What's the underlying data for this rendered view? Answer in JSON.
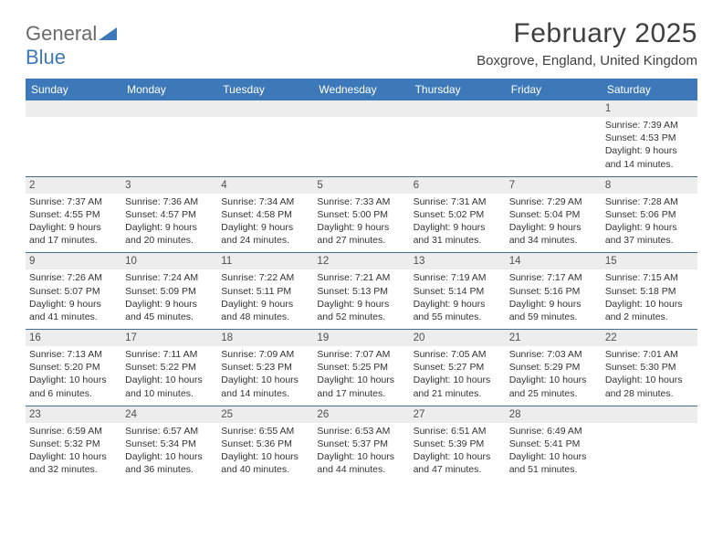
{
  "logo": {
    "text1": "General",
    "text2": "Blue"
  },
  "title": "February 2025",
  "location": "Boxgrove, England, United Kingdom",
  "colors": {
    "header_bg": "#3d79b8",
    "header_text": "#ffffff",
    "strip_bg": "#ededed",
    "divider": "#4a6a8a",
    "text": "#333333",
    "title_color": "#3f3f3f"
  },
  "dayHeaders": [
    "Sunday",
    "Monday",
    "Tuesday",
    "Wednesday",
    "Thursday",
    "Friday",
    "Saturday"
  ],
  "weeks": [
    [
      null,
      null,
      null,
      null,
      null,
      null,
      {
        "n": "1",
        "sr": "Sunrise: 7:39 AM",
        "ss": "Sunset: 4:53 PM",
        "d1": "Daylight: 9 hours",
        "d2": "and 14 minutes."
      }
    ],
    [
      {
        "n": "2",
        "sr": "Sunrise: 7:37 AM",
        "ss": "Sunset: 4:55 PM",
        "d1": "Daylight: 9 hours",
        "d2": "and 17 minutes."
      },
      {
        "n": "3",
        "sr": "Sunrise: 7:36 AM",
        "ss": "Sunset: 4:57 PM",
        "d1": "Daylight: 9 hours",
        "d2": "and 20 minutes."
      },
      {
        "n": "4",
        "sr": "Sunrise: 7:34 AM",
        "ss": "Sunset: 4:58 PM",
        "d1": "Daylight: 9 hours",
        "d2": "and 24 minutes."
      },
      {
        "n": "5",
        "sr": "Sunrise: 7:33 AM",
        "ss": "Sunset: 5:00 PM",
        "d1": "Daylight: 9 hours",
        "d2": "and 27 minutes."
      },
      {
        "n": "6",
        "sr": "Sunrise: 7:31 AM",
        "ss": "Sunset: 5:02 PM",
        "d1": "Daylight: 9 hours",
        "d2": "and 31 minutes."
      },
      {
        "n": "7",
        "sr": "Sunrise: 7:29 AM",
        "ss": "Sunset: 5:04 PM",
        "d1": "Daylight: 9 hours",
        "d2": "and 34 minutes."
      },
      {
        "n": "8",
        "sr": "Sunrise: 7:28 AM",
        "ss": "Sunset: 5:06 PM",
        "d1": "Daylight: 9 hours",
        "d2": "and 37 minutes."
      }
    ],
    [
      {
        "n": "9",
        "sr": "Sunrise: 7:26 AM",
        "ss": "Sunset: 5:07 PM",
        "d1": "Daylight: 9 hours",
        "d2": "and 41 minutes."
      },
      {
        "n": "10",
        "sr": "Sunrise: 7:24 AM",
        "ss": "Sunset: 5:09 PM",
        "d1": "Daylight: 9 hours",
        "d2": "and 45 minutes."
      },
      {
        "n": "11",
        "sr": "Sunrise: 7:22 AM",
        "ss": "Sunset: 5:11 PM",
        "d1": "Daylight: 9 hours",
        "d2": "and 48 minutes."
      },
      {
        "n": "12",
        "sr": "Sunrise: 7:21 AM",
        "ss": "Sunset: 5:13 PM",
        "d1": "Daylight: 9 hours",
        "d2": "and 52 minutes."
      },
      {
        "n": "13",
        "sr": "Sunrise: 7:19 AM",
        "ss": "Sunset: 5:14 PM",
        "d1": "Daylight: 9 hours",
        "d2": "and 55 minutes."
      },
      {
        "n": "14",
        "sr": "Sunrise: 7:17 AM",
        "ss": "Sunset: 5:16 PM",
        "d1": "Daylight: 9 hours",
        "d2": "and 59 minutes."
      },
      {
        "n": "15",
        "sr": "Sunrise: 7:15 AM",
        "ss": "Sunset: 5:18 PM",
        "d1": "Daylight: 10 hours",
        "d2": "and 2 minutes."
      }
    ],
    [
      {
        "n": "16",
        "sr": "Sunrise: 7:13 AM",
        "ss": "Sunset: 5:20 PM",
        "d1": "Daylight: 10 hours",
        "d2": "and 6 minutes."
      },
      {
        "n": "17",
        "sr": "Sunrise: 7:11 AM",
        "ss": "Sunset: 5:22 PM",
        "d1": "Daylight: 10 hours",
        "d2": "and 10 minutes."
      },
      {
        "n": "18",
        "sr": "Sunrise: 7:09 AM",
        "ss": "Sunset: 5:23 PM",
        "d1": "Daylight: 10 hours",
        "d2": "and 14 minutes."
      },
      {
        "n": "19",
        "sr": "Sunrise: 7:07 AM",
        "ss": "Sunset: 5:25 PM",
        "d1": "Daylight: 10 hours",
        "d2": "and 17 minutes."
      },
      {
        "n": "20",
        "sr": "Sunrise: 7:05 AM",
        "ss": "Sunset: 5:27 PM",
        "d1": "Daylight: 10 hours",
        "d2": "and 21 minutes."
      },
      {
        "n": "21",
        "sr": "Sunrise: 7:03 AM",
        "ss": "Sunset: 5:29 PM",
        "d1": "Daylight: 10 hours",
        "d2": "and 25 minutes."
      },
      {
        "n": "22",
        "sr": "Sunrise: 7:01 AM",
        "ss": "Sunset: 5:30 PM",
        "d1": "Daylight: 10 hours",
        "d2": "and 28 minutes."
      }
    ],
    [
      {
        "n": "23",
        "sr": "Sunrise: 6:59 AM",
        "ss": "Sunset: 5:32 PM",
        "d1": "Daylight: 10 hours",
        "d2": "and 32 minutes."
      },
      {
        "n": "24",
        "sr": "Sunrise: 6:57 AM",
        "ss": "Sunset: 5:34 PM",
        "d1": "Daylight: 10 hours",
        "d2": "and 36 minutes."
      },
      {
        "n": "25",
        "sr": "Sunrise: 6:55 AM",
        "ss": "Sunset: 5:36 PM",
        "d1": "Daylight: 10 hours",
        "d2": "and 40 minutes."
      },
      {
        "n": "26",
        "sr": "Sunrise: 6:53 AM",
        "ss": "Sunset: 5:37 PM",
        "d1": "Daylight: 10 hours",
        "d2": "and 44 minutes."
      },
      {
        "n": "27",
        "sr": "Sunrise: 6:51 AM",
        "ss": "Sunset: 5:39 PM",
        "d1": "Daylight: 10 hours",
        "d2": "and 47 minutes."
      },
      {
        "n": "28",
        "sr": "Sunrise: 6:49 AM",
        "ss": "Sunset: 5:41 PM",
        "d1": "Daylight: 10 hours",
        "d2": "and 51 minutes."
      },
      null
    ]
  ]
}
